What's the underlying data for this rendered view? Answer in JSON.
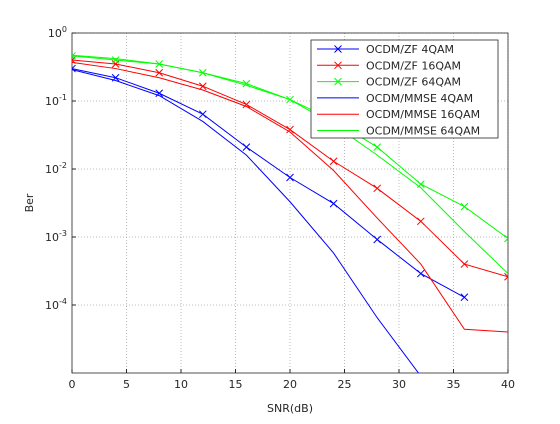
{
  "chart_data": {
    "type": "line",
    "x_label": "SNR(dB)",
    "y_label": "Ber",
    "log_y": true,
    "grid": true,
    "legend": "top-right",
    "x": [
      0,
      4,
      8,
      12,
      16,
      20,
      24,
      28,
      32,
      36,
      40
    ],
    "xlim": [
      0,
      40
    ],
    "xticks": [
      0,
      5,
      10,
      15,
      20,
      25,
      30,
      35,
      40
    ],
    "ylim": [
      1e-05,
      1
    ],
    "yticks": [
      {
        "value": 0.0001,
        "label": "10^-4"
      },
      {
        "value": 0.001,
        "label": "10^-3"
      },
      {
        "value": 0.01,
        "label": "10^-2"
      },
      {
        "value": 0.1,
        "label": "10^-1"
      },
      {
        "value": 1,
        "label": "10^0"
      }
    ],
    "series": [
      {
        "name": "OCDM/ZF 4QAM",
        "color": "#0000ff",
        "marker": "x",
        "values": [
          0.3,
          0.22,
          0.13,
          0.064,
          0.021,
          0.0075,
          0.0031,
          0.00092,
          0.00029,
          0.00013,
          null
        ]
      },
      {
        "name": "OCDM/ZF 16QAM",
        "color": "#ff0000",
        "marker": "x",
        "values": [
          0.4,
          0.35,
          0.26,
          0.165,
          0.089,
          0.038,
          0.013,
          0.0052,
          0.0017,
          0.0004,
          0.00026
        ]
      },
      {
        "name": "OCDM/ZF 64QAM",
        "color": "#00ff00",
        "marker": "x",
        "values": [
          0.46,
          0.4,
          0.35,
          0.26,
          0.18,
          0.105,
          0.052,
          0.021,
          0.006,
          0.0028,
          0.00095
        ]
      },
      {
        "name": "OCDM/MMSE 4QAM",
        "color": "#0000ff",
        "marker": "none",
        "values": [
          0.29,
          0.2,
          0.12,
          0.05,
          0.016,
          0.0033,
          0.00058,
          6.5e-05,
          9e-06,
          null,
          null
        ]
      },
      {
        "name": "OCDM/MMSE 16QAM",
        "color": "#ff0000",
        "marker": "none",
        "values": [
          0.37,
          0.3,
          0.22,
          0.145,
          0.083,
          0.035,
          0.0095,
          0.0019,
          0.0004,
          4.4e-05,
          4e-05
        ]
      },
      {
        "name": "OCDM/MMSE 64QAM",
        "color": "#00ff00",
        "marker": "none",
        "values": [
          0.47,
          0.42,
          0.35,
          0.26,
          0.17,
          0.105,
          0.045,
          0.016,
          0.0053,
          0.0012,
          0.00029
        ]
      }
    ]
  }
}
